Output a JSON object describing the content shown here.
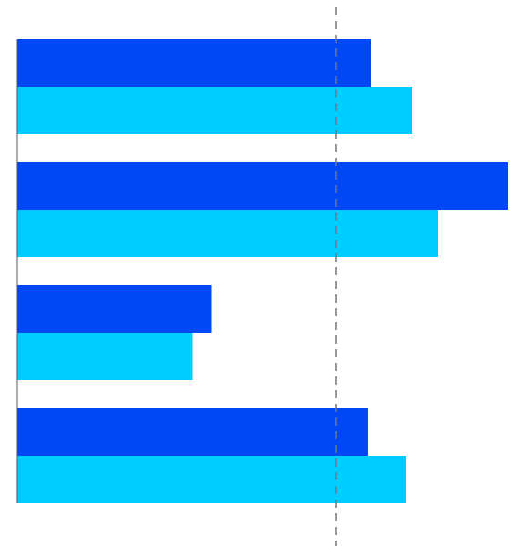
{
  "chart_data": {
    "type": "bar",
    "orientation": "horizontal",
    "categories": [
      null,
      null,
      null,
      null
    ],
    "series": [
      {
        "color": "#0048f5",
        "values": [
          111,
          154,
          61,
          110
        ]
      },
      {
        "color": "#00cdff",
        "values": [
          124,
          132,
          55,
          122
        ]
      }
    ],
    "xlim": [
      0,
      160
    ],
    "reference_line": 100
  }
}
